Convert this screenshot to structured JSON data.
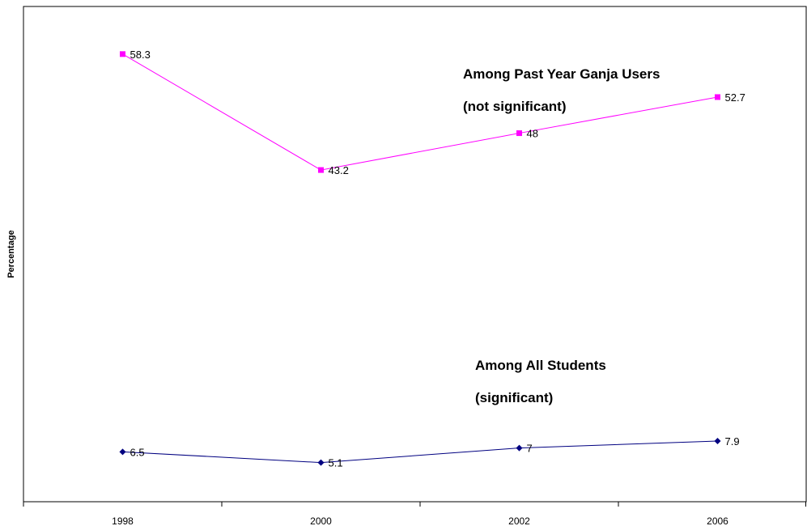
{
  "chart_data": {
    "type": "line",
    "categories": [
      "1998",
      "2000",
      "2002",
      "2006"
    ],
    "series": [
      {
        "name": "",
        "values": [
          58.3,
          43.2,
          48,
          52.7
        ],
        "color": "#ff00ff",
        "marker": "square",
        "data_labels": [
          "58.3",
          "43.2",
          "48",
          "52.7"
        ]
      },
      {
        "name": "",
        "values": [
          6.5,
          5.1,
          7,
          7.9
        ],
        "color": "#000080",
        "marker": "diamond",
        "data_labels": [
          "6.5",
          "5.1",
          "7",
          "7.9"
        ]
      }
    ],
    "annotations": [
      {
        "lines": [
          "Among Past Year Ganja Users",
          "(not significant)"
        ]
      },
      {
        "lines": [
          "Among All Students",
          "(significant)"
        ]
      }
    ],
    "title": "",
    "xlabel": "",
    "ylabel": "Percentage",
    "ylim": [
      0,
      64.5
    ],
    "grid": false,
    "legend": "none"
  }
}
